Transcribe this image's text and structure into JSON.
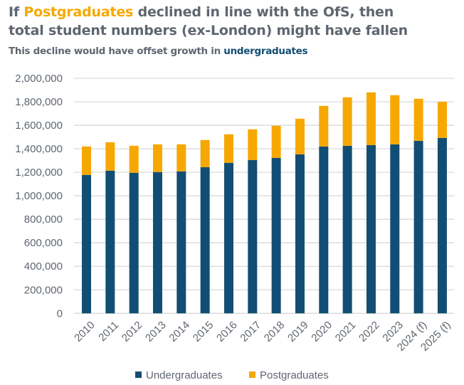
{
  "header": {
    "title_prefix": "If ",
    "title_highlight": "Postgraduates",
    "title_line1_rest": " declined in line with the OfS, then",
    "title_line2": "total student numbers (ex-London) might have fallen",
    "subtitle_prefix": "This decline would have offset growth in ",
    "subtitle_highlight": "undergraduates"
  },
  "colors": {
    "undergraduates": "#124e73",
    "postgraduates": "#f6a800",
    "grid": "#d9d9d9",
    "text": "#5f6670"
  },
  "chart_data": {
    "type": "bar",
    "stacked": true,
    "categories": [
      "2010",
      "2011",
      "2012",
      "2013",
      "2014",
      "2015",
      "2016",
      "2017",
      "2018",
      "2019",
      "2020",
      "2021",
      "2022",
      "2023",
      "2024 (f)",
      "2025 (f)"
    ],
    "series": [
      {
        "name": "Undergraduates",
        "values": [
          1178000,
          1214000,
          1196000,
          1202000,
          1208000,
          1244000,
          1281000,
          1305000,
          1323000,
          1353000,
          1420000,
          1426000,
          1432000,
          1438000,
          1468000,
          1493000
        ]
      },
      {
        "name": "Postgraduates",
        "values": [
          242000,
          242000,
          230000,
          236000,
          230000,
          231000,
          242000,
          261000,
          273000,
          303000,
          345000,
          412000,
          448000,
          418000,
          358000,
          307000
        ]
      }
    ],
    "ylim": [
      0,
      2000000
    ],
    "yticks": [
      "0",
      "200,000",
      "400,000",
      "600,000",
      "800,000",
      "1,000,000",
      "1,200,000",
      "1,400,000",
      "1,600,000",
      "1,800,000",
      "2,000,000"
    ],
    "grid": true,
    "legend_position": "bottom"
  }
}
